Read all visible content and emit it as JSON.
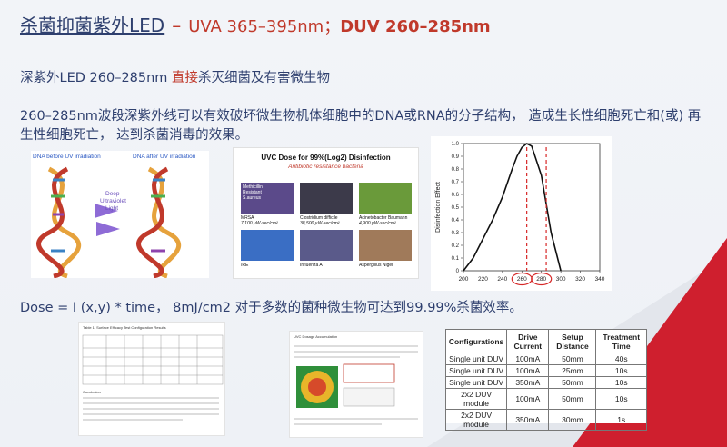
{
  "colors": {
    "accent_red": "#c0392b",
    "navy": "#2e3f6e",
    "corner_red": "#cf1f2e"
  },
  "header": {
    "title": "杀菌抑菌紫外LED",
    "dash": "–",
    "uva": "UVA 365–395nm；",
    "duv": "DUV 260–285nm"
  },
  "subtitle": {
    "prefix": "深紫外LED 260–285nm ",
    "highlight": "直接",
    "suffix": "杀灭细菌及有害微生物"
  },
  "paragraph": "260–285nm波段深紫外线可以有效破坏微生物机体细胞中的DNA或RNA的分子结构， 造成生长性细胞死亡和(或) 再生性细胞死亡， 达到杀菌消毒的效果。",
  "dna_figure": {
    "left_label": "DNA before UV irradiation",
    "right_label": "DNA after UV irradiation",
    "light_label_1": "Deep",
    "light_label_2": "Ultraviolet",
    "light_label_3": "Light"
  },
  "uvc_figure": {
    "title": "UVC Dose for 99%(Log2) Disinfection",
    "subtitle": "Antibiotic resistance bacteria",
    "tiles": [
      {
        "name": "MRSA",
        "dose": "7,100 µW·sec/cm²",
        "icon": "methicillin-resistant-s-aureus"
      },
      {
        "name": "Clostridium difficile",
        "dose": "38,500 µW·sec/cm²",
        "icon": "bacteria"
      },
      {
        "name": "Acinetobacter Baumann",
        "dose": "4,900 µW·sec/cm²",
        "icon": "bacteria"
      },
      {
        "name": "/RE",
        "dose": "",
        "icon": "bacteria"
      },
      {
        "name": "Influenza A",
        "dose": "",
        "icon": "virus"
      },
      {
        "name": "Aspergillus Niger",
        "dose": "",
        "icon": "mold"
      }
    ],
    "tile_overlay": "Methicillin Resistant S.aureus"
  },
  "chart_data": {
    "type": "line",
    "ylabel": "Disinfection Effect",
    "xlabel": "",
    "x": [
      200,
      210,
      220,
      230,
      240,
      250,
      255,
      260,
      265,
      270,
      280,
      290,
      300
    ],
    "series": [
      {
        "values": [
          0.0,
          0.1,
          0.25,
          0.4,
          0.58,
          0.8,
          0.9,
          0.97,
          1.0,
          0.98,
          0.75,
          0.3,
          0.0
        ]
      }
    ],
    "xlim": [
      200,
      340
    ],
    "ylim": [
      0,
      1.0
    ],
    "xticks": [
      "200",
      "220",
      "240",
      "260",
      "280",
      "300",
      "320",
      "340"
    ],
    "yticks": [
      "0",
      "0.1",
      "0.2",
      "0.3",
      "0.4",
      "0.5",
      "0.6",
      "0.7",
      "0.8",
      "0.9",
      "1.0"
    ],
    "highlight_lines": [
      265,
      285
    ],
    "circled_ticks": [
      "260",
      "280"
    ]
  },
  "formula": "Dose = I (x,y) * time， 8mJ/cm2 对于多数的菌种微生物可达到99.99%杀菌效率。",
  "doc1": {
    "caption": "Table 1: Surface Efficacy Test Configuration Results",
    "section": "Conclusion"
  },
  "doc2": {
    "heading": "UVC Dosage Accumulation"
  },
  "config_table": {
    "headers": [
      "Configurations",
      "Drive Current",
      "Setup Distance",
      "Treatment Time"
    ],
    "rows": [
      [
        "Single unit DUV",
        "100mA",
        "50mm",
        "40s"
      ],
      [
        "Single unit DUV",
        "100mA",
        "25mm",
        "10s"
      ],
      [
        "Single unit DUV",
        "350mA",
        "50mm",
        "10s"
      ],
      [
        "2x2 DUV module",
        "100mA",
        "50mm",
        "10s"
      ],
      [
        "2x2 DUV module",
        "350mA",
        "30mm",
        "1s"
      ]
    ]
  }
}
